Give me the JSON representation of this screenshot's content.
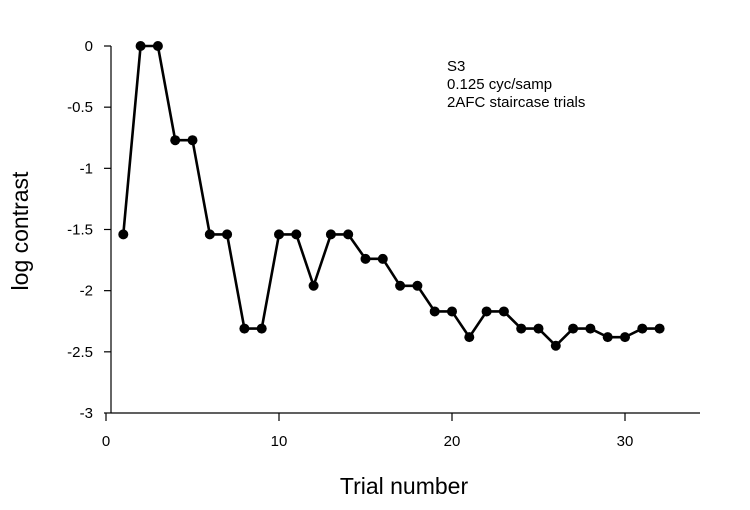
{
  "chart_data": {
    "type": "line",
    "xlabel": "Trial number",
    "ylabel": "log contrast",
    "xlim": [
      0,
      35
    ],
    "ylim": [
      -3,
      0
    ],
    "xticks": [
      0,
      10,
      20,
      30
    ],
    "yticks": [
      0,
      -0.5,
      -1,
      -1.5,
      -2,
      -2.5,
      -3
    ],
    "xtick_labels": [
      "0",
      "10",
      "20",
      "30"
    ],
    "ytick_labels": [
      "0",
      "-0.5",
      "-1",
      "-1.5",
      "-2",
      "-2.5",
      "-3"
    ],
    "annotations": [
      "S3",
      "0.125 cyc/samp",
      "2AFC staircase trials"
    ],
    "grid": false,
    "series": [
      {
        "color": "#000000",
        "marker": "circle",
        "x": [
          1,
          2,
          3,
          4,
          5,
          6,
          7,
          8,
          9,
          10,
          11,
          12,
          13,
          14,
          15,
          16,
          17,
          18,
          19,
          20,
          21,
          22,
          23,
          24,
          25,
          26,
          27,
          28,
          29,
          30,
          31,
          32
        ],
        "y": [
          -1.54,
          0,
          0,
          -0.77,
          -0.77,
          -1.54,
          -1.54,
          -2.31,
          -2.31,
          -1.54,
          -1.54,
          -1.96,
          -1.54,
          -1.54,
          -1.74,
          -1.74,
          -1.96,
          -1.96,
          -2.17,
          -2.17,
          -2.38,
          -2.17,
          -2.17,
          -2.31,
          -2.31,
          -2.45,
          -2.31,
          -2.31,
          -2.38,
          -2.38,
          -2.31,
          -2.31
        ]
      }
    ]
  }
}
